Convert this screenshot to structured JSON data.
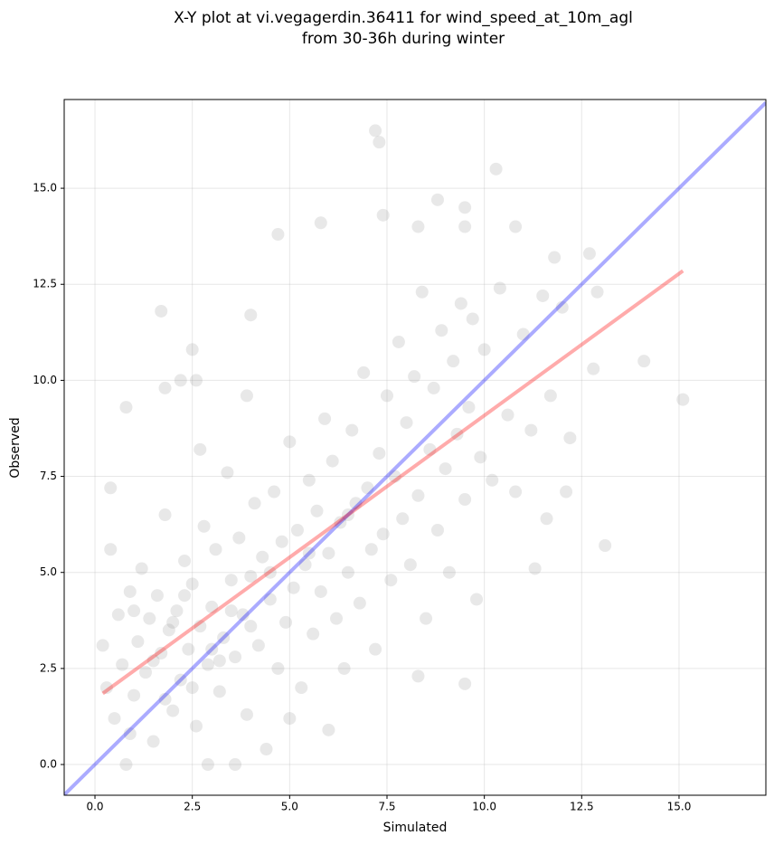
{
  "chart_data": {
    "type": "scatter",
    "title": [
      "X-Y plot at vi.vegagerdin.36411 for wind_speed_at_10m_agl",
      "from 30-36h during winter"
    ],
    "xlabel": "Simulated",
    "ylabel": "Observed",
    "color": "#808080",
    "grid": true,
    "xlim": [
      -0.79,
      17.23
    ],
    "ylim": [
      -0.8,
      17.31
    ],
    "xticks": [
      {
        "value": 0,
        "label": "0.0"
      },
      2.5,
      {
        "value": 5,
        "label": "5.0"
      },
      7.5,
      {
        "value": 10,
        "label": "10.0"
      },
      12.5,
      {
        "value": 15,
        "label": "15.0"
      }
    ],
    "yticks": [
      {
        "value": 0,
        "label": "0.0"
      },
      2.5,
      {
        "value": 5,
        "label": "5.0"
      },
      7.5,
      {
        "value": 10,
        "label": "10.0"
      },
      12.5,
      {
        "value": 15,
        "label": "15.0"
      }
    ],
    "x": [
      7.2,
      7.3,
      10.3,
      4.7,
      5.8,
      7.4,
      8.3,
      8.8,
      9.5,
      9.5,
      10.8,
      1.7,
      4.0,
      15.1,
      14.1,
      13.1,
      12.8,
      12.9,
      12.7,
      11.8,
      0.4,
      0.4,
      0.8,
      1.8,
      2.2,
      2.5,
      2.6,
      3.6,
      2.9,
      0.8,
      9.5,
      8.3,
      11.3,
      11.6,
      12.2,
      12.1,
      0.2,
      0.3,
      0.5,
      0.6,
      0.7,
      0.9,
      1.0,
      1.1,
      1.2,
      1.3,
      1.4,
      1.5,
      1.6,
      1.7,
      1.8,
      1.9,
      2.0,
      2.1,
      2.2,
      2.3,
      2.4,
      2.5,
      2.6,
      2.7,
      2.8,
      2.9,
      3.0,
      3.1,
      3.2,
      3.3,
      3.4,
      3.5,
      3.6,
      3.7,
      3.8,
      3.9,
      4.0,
      4.1,
      4.2,
      4.3,
      4.4,
      4.5,
      4.6,
      4.7,
      4.8,
      4.9,
      5.0,
      5.1,
      5.2,
      5.3,
      5.4,
      5.5,
      5.6,
      5.7,
      5.8,
      5.9,
      6.0,
      6.1,
      6.2,
      6.3,
      6.4,
      6.5,
      6.6,
      6.7,
      6.8,
      6.9,
      7.0,
      7.1,
      7.2,
      7.3,
      7.4,
      7.5,
      7.6,
      7.7,
      7.8,
      7.9,
      8.0,
      8.1,
      8.2,
      8.3,
      8.4,
      8.5,
      8.6,
      8.7,
      8.8,
      8.9,
      9.0,
      9.1,
      9.2,
      9.3,
      9.4,
      9.5,
      9.6,
      9.7,
      9.8,
      9.9,
      10.0,
      10.2,
      10.4,
      10.6,
      10.8,
      11.0,
      11.2,
      11.5,
      11.7,
      12.0,
      2.0,
      1.5,
      3.0,
      2.5,
      4.0,
      3.5,
      1.0,
      2.3,
      4.5,
      5.5,
      6.5,
      3.2,
      1.8,
      0.9,
      5.0,
      6.0,
      2.7,
      3.9
    ],
    "values": [
      16.5,
      16.2,
      15.5,
      13.8,
      14.1,
      14.3,
      14.0,
      14.7,
      14.5,
      14.0,
      14.0,
      11.8,
      11.7,
      9.5,
      10.5,
      5.7,
      10.3,
      12.3,
      13.3,
      13.2,
      7.2,
      5.6,
      9.3,
      9.8,
      10.0,
      10.8,
      10.0,
      0.0,
      0.0,
      0.0,
      2.1,
      2.3,
      5.1,
      6.4,
      8.5,
      7.1,
      3.1,
      2.0,
      1.2,
      3.9,
      2.6,
      4.5,
      1.8,
      3.2,
      5.1,
      2.4,
      3.8,
      0.6,
      4.4,
      2.9,
      6.5,
      3.5,
      1.4,
      4.0,
      2.2,
      5.3,
      3.0,
      4.7,
      1.0,
      3.6,
      6.2,
      2.6,
      4.1,
      5.6,
      1.9,
      3.3,
      7.6,
      4.8,
      2.8,
      5.9,
      3.9,
      1.3,
      4.9,
      6.8,
      3.1,
      5.4,
      0.4,
      4.3,
      7.1,
      2.5,
      5.8,
      3.7,
      8.4,
      4.6,
      6.1,
      2.0,
      5.2,
      7.4,
      3.4,
      6.6,
      4.5,
      9.0,
      5.5,
      7.9,
      3.8,
      6.3,
      2.5,
      5.0,
      8.7,
      6.8,
      4.2,
      10.2,
      7.2,
      5.6,
      3.0,
      8.1,
      6.0,
      9.6,
      4.8,
      7.5,
      11.0,
      6.4,
      8.9,
      5.2,
      10.1,
      7.0,
      12.3,
      3.8,
      8.2,
      9.8,
      6.1,
      11.3,
      7.7,
      5.0,
      10.5,
      8.6,
      12.0,
      6.9,
      9.3,
      11.6,
      4.3,
      8.0,
      10.8,
      7.4,
      12.4,
      9.1,
      7.1,
      11.2,
      8.7,
      12.2,
      9.6,
      11.9,
      3.7,
      2.7,
      3.0,
      2.0,
      3.6,
      4.0,
      4.0,
      4.4,
      5.0,
      5.5,
      6.5,
      2.7,
      1.7,
      0.8,
      1.2,
      0.9,
      8.2,
      9.6
    ],
    "lines": [
      {
        "color": "#0000ff",
        "x": [
          -0.79,
          17.23
        ],
        "values": [
          -0.79,
          17.23
        ]
      },
      {
        "color": "#ff0000",
        "x": [
          0.2,
          15.1
        ],
        "values": [
          1.85,
          12.85
        ]
      }
    ]
  }
}
